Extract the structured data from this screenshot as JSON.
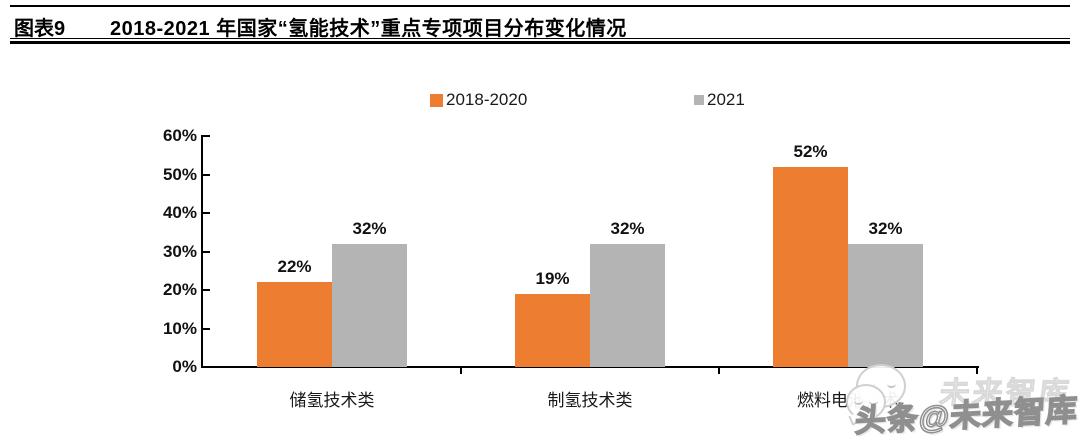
{
  "header": {
    "tag": "图表9",
    "title": "2018-2021 年国家“氢能技术”重点专项项目分布变化情况"
  },
  "chart_data": {
    "type": "bar",
    "title": "2018-2021 年国家“氢能技术”重点专项项目分布变化情况",
    "categories": [
      "储氢技术类",
      "制氢技术类",
      "燃料电池技术"
    ],
    "series": [
      {
        "name": "2018-2020",
        "color": "#ED7D31",
        "values": [
          22,
          19,
          52
        ],
        "data_labels": [
          "22%",
          "19%",
          "52%"
        ]
      },
      {
        "name": "2021",
        "color": "#B4B4B4",
        "values": [
          32,
          32,
          32
        ],
        "data_labels": [
          "32%",
          "32%",
          "32%"
        ]
      }
    ],
    "xlabel": "",
    "ylabel": "",
    "ylim": [
      0,
      60
    ],
    "ytick_step": 10,
    "yticks": [
      "0%",
      "10%",
      "20%",
      "30%",
      "40%",
      "50%",
      "60%"
    ],
    "grid": false,
    "legend_position": "top-center",
    "bar_gap_within_group": 0
  },
  "watermark": {
    "ghost_text": "未来智库",
    "main_text": "头条@未来智库",
    "logo": "speech-bubbles-icon"
  },
  "colors": {
    "series1": "#ED7D31",
    "series2": "#B4B4B4",
    "axis": "#000000",
    "title_text": "#000000",
    "background": "#FFFFFF",
    "watermark_stroke": "#8F8F8F"
  }
}
